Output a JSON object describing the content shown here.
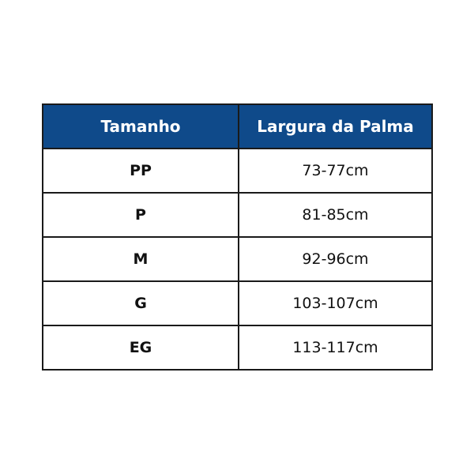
{
  "header": {
    "size": "Tamanho",
    "width": "Largura da Palma"
  },
  "colors": {
    "header_bg": "#0f4a8a"
  },
  "rows": [
    {
      "size": "PP",
      "width": "73-77cm"
    },
    {
      "size": "P",
      "width": "81-85cm"
    },
    {
      "size": "M",
      "width": "92-96cm"
    },
    {
      "size": "G",
      "width": "103-107cm"
    },
    {
      "size": "EG",
      "width": "113-117cm"
    }
  ]
}
